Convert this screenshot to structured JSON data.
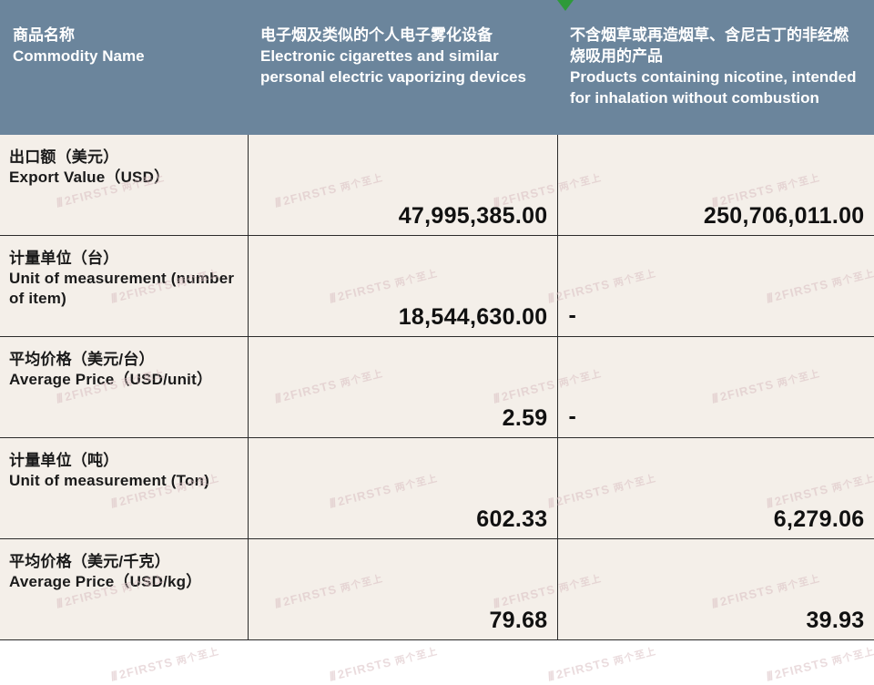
{
  "header": {
    "row_label_zh": "商品名称",
    "row_label_en": "Commodity Name",
    "col1_zh": "电子烟及类似的个人电子雾化设备",
    "col1_en": "Electronic cigarettes and similar personal electric vaporizing devices",
    "col2_zh": "不含烟草或再造烟草、含尼古丁的非经燃烧吸用的产品",
    "col2_en": "Products containing nicotine, intended for inhalation without combustion"
  },
  "colors": {
    "header_bg": "#6b859c",
    "header_text": "#ffffff",
    "body_bg": "#f4efe9",
    "border": "#2b2b2b",
    "text": "#1a1a1a",
    "watermark": "#d9bfc2",
    "triangle": "#2e9a3a"
  },
  "rows": [
    {
      "label_zh": "出口额（美元）",
      "label_en": " Export Value（USD）",
      "col1": "47,995,385.00",
      "col2": "250,706,011.00"
    },
    {
      "label_zh": "计量单位（台）",
      "label_en": "Unit of measurement (number of item)",
      "col1": "18,544,630.00",
      "col2": "-"
    },
    {
      "label_zh": "平均价格（美元/台）",
      "label_en": "Average Price（USD/unit）",
      "col1": "2.59",
      "col2": "-"
    },
    {
      "label_zh": "计量单位（吨）",
      "label_en": "Unit of measurement (Ton)",
      "col1": "602.33",
      "col2": "6,279.06"
    },
    {
      "label_zh": "平均价格（美元/千克）",
      "label_en": "Average Price（USD/kg）",
      "col1": "79.68",
      "col2": "39.93"
    }
  ],
  "watermark": {
    "text": "2FIRSTS",
    "suffix_cjk": "两个至上"
  }
}
